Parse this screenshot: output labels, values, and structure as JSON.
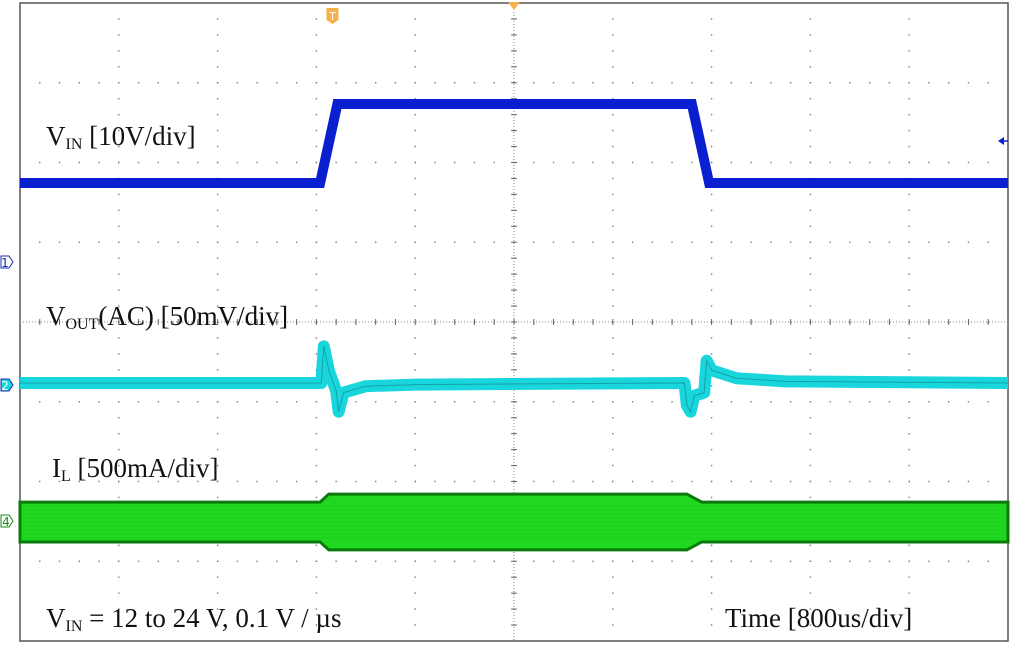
{
  "labels": {
    "vin_prefix": "V",
    "vin_sub": "IN",
    "vin_scale": " [10V/div]",
    "vout_prefix": "V",
    "vout_sub": "OUT",
    "vout_scale": "(AC) [50mV/div]",
    "il_prefix": "I",
    "il_sub": "L",
    "il_scale": " [500mA/div]",
    "cond_prefix": "V",
    "cond_sub": "IN",
    "cond_text": " = 12 to 24 V, 0.1 V / µs",
    "time_scale": "Time [800us/div]"
  },
  "markers": {
    "ch1": "1",
    "ch2": "2",
    "ch4": "4",
    "trigger": "T"
  },
  "colors": {
    "vin": "#0a1fd0",
    "vout": "#19d6dc",
    "il": "#1fd81f",
    "il_edge": "#0a7a0a",
    "trigger": "#f5b04a",
    "grid": "#7a7a7a"
  },
  "chart_data": {
    "type": "line",
    "grid": true,
    "x_divisions": 10,
    "y_divisions": 8,
    "xlabel": "Time [800us/div]",
    "xlim_ms": [
      0,
      8
    ],
    "trigger_time_ms": 2.53,
    "series": [
      {
        "name": "VIN [10V/div]",
        "unit": "V",
        "points": [
          [
            0,
            12
          ],
          [
            2.43,
            12
          ],
          [
            2.57,
            24
          ],
          [
            5.44,
            24
          ],
          [
            5.58,
            12
          ],
          [
            8,
            12
          ]
        ]
      },
      {
        "name": "VOUT(AC) [50mV/div]",
        "unit": "mV",
        "points": [
          [
            0,
            0
          ],
          [
            2.44,
            0
          ],
          [
            2.46,
            23
          ],
          [
            2.5,
            8
          ],
          [
            2.56,
            -5
          ],
          [
            2.58,
            -18
          ],
          [
            2.62,
            -6
          ],
          [
            2.8,
            -2
          ],
          [
            3.2,
            -1
          ],
          [
            5.38,
            0
          ],
          [
            5.4,
            -14
          ],
          [
            5.43,
            -18
          ],
          [
            5.46,
            -8
          ],
          [
            5.54,
            -6
          ],
          [
            5.56,
            14
          ],
          [
            5.6,
            8
          ],
          [
            5.8,
            3
          ],
          [
            6.2,
            1
          ],
          [
            8,
            0
          ]
        ]
      },
      {
        "name": "IL [500mA/div]",
        "unit": "mA",
        "ripple_envelope": [
          [
            0,
            250
          ],
          [
            2.43,
            250
          ],
          [
            2.5,
            350
          ],
          [
            5.4,
            350
          ],
          [
            5.52,
            250
          ],
          [
            8,
            250
          ]
        ]
      }
    ]
  }
}
